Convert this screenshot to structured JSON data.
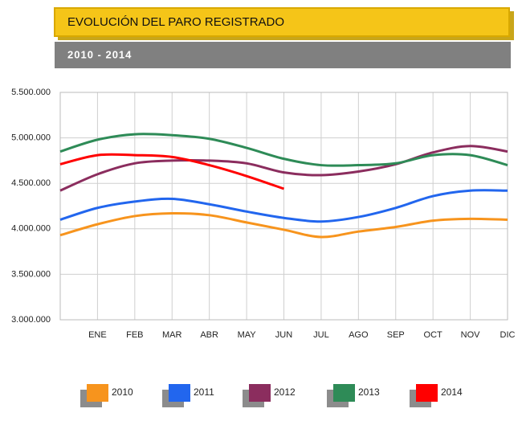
{
  "chart_data": {
    "type": "line",
    "title": "EVOLUCIÓN DEL PARO REGISTRADO",
    "subtitle": "2010 - 2014",
    "categories": [
      null,
      "ENE",
      "FEB",
      "MAR",
      "ABR",
      "MAY",
      "JUN",
      "JUL",
      "AGO",
      "SEP",
      "OCT",
      "NOV",
      "DIC"
    ],
    "series": [
      {
        "name": "2010",
        "color": "#f7941d",
        "values": [
          3930000,
          4050000,
          4140000,
          4170000,
          4150000,
          4070000,
          3990000,
          3910000,
          3970000,
          4020000,
          4090000,
          4110000,
          4100000
        ]
      },
      {
        "name": "2011",
        "color": "#2266ee",
        "values": [
          4100000,
          4230000,
          4300000,
          4330000,
          4270000,
          4190000,
          4120000,
          4080000,
          4130000,
          4230000,
          4360000,
          4420000,
          4420000
        ]
      },
      {
        "name": "2012",
        "color": "#8b2d5e",
        "values": [
          4420000,
          4600000,
          4720000,
          4750000,
          4750000,
          4720000,
          4620000,
          4590000,
          4630000,
          4710000,
          4840000,
          4910000,
          4850000
        ]
      },
      {
        "name": "2013",
        "color": "#2e8b57",
        "values": [
          4850000,
          4980000,
          5040000,
          5030000,
          4990000,
          4890000,
          4770000,
          4700000,
          4700000,
          4720000,
          4810000,
          4810000,
          4700000
        ]
      },
      {
        "name": "2014",
        "color": "#ff0000",
        "values": [
          4710000,
          4810000,
          4810000,
          4790000,
          4700000,
          4580000,
          4440000,
          null,
          null,
          null,
          null,
          null,
          null
        ]
      }
    ],
    "ylim": [
      3000000,
      5500000
    ],
    "yticks": [
      {
        "value": 3000000,
        "label": "3.000.000"
      },
      {
        "value": 3500000,
        "label": "3.500.000"
      },
      {
        "value": 4000000,
        "label": "4.000.000"
      },
      {
        "value": 4500000,
        "label": "4.500.000"
      },
      {
        "value": 5000000,
        "label": "5.000.000"
      },
      {
        "value": 5500000,
        "label": "5.500.000"
      }
    ],
    "grid": true
  }
}
